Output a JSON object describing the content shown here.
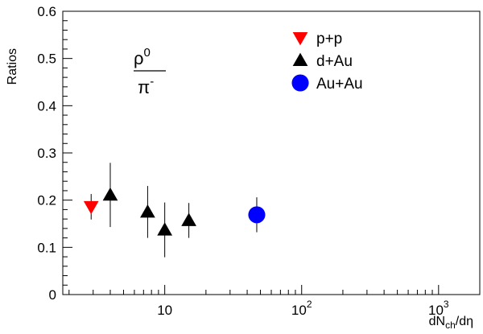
{
  "chart_data": {
    "type": "scatter",
    "title": "",
    "ylabel": "Ratios",
    "xlabel": {
      "base": "dN",
      "sub": "ch",
      "tail": "/dη"
    },
    "xscale": "log",
    "xlim": [
      1.8,
      2000
    ],
    "ylim": [
      0,
      0.6
    ],
    "grid": false,
    "legend_position": "top-right",
    "y_ticks": [
      {
        "value": 0,
        "label": "0"
      },
      {
        "value": 0.1,
        "label": "0.1"
      },
      {
        "value": 0.2,
        "label": "0.2"
      },
      {
        "value": 0.3,
        "label": "0.3"
      },
      {
        "value": 0.4,
        "label": "0.4"
      },
      {
        "value": 0.5,
        "label": "0.5"
      },
      {
        "value": 0.6,
        "label": "0.6"
      }
    ],
    "x_ticks": [
      {
        "value": 10,
        "base": "10",
        "exp": ""
      },
      {
        "value": 100,
        "base": "10",
        "exp": "2"
      },
      {
        "value": 1000,
        "base": "10",
        "exp": "3"
      }
    ],
    "annotation": {
      "numerator": "ρ",
      "numerator_sup": "0",
      "denominator": "π",
      "denominator_sup": "-"
    },
    "series": [
      {
        "name": "p+p",
        "marker": "triangle-down",
        "color": "#ff0000",
        "points": [
          {
            "x": 2.9,
            "y": 0.186,
            "err": 0.027
          }
        ]
      },
      {
        "name": "d+Au",
        "marker": "triangle-up",
        "color": "#000000",
        "points": [
          {
            "x": 4.0,
            "y": 0.211,
            "err": 0.068
          },
          {
            "x": 7.5,
            "y": 0.175,
            "err": 0.055
          },
          {
            "x": 10.0,
            "y": 0.137,
            "err": 0.058
          },
          {
            "x": 15.0,
            "y": 0.157,
            "err": 0.037
          }
        ]
      },
      {
        "name": "Au+Au",
        "marker": "circle",
        "color": "#0000ff",
        "points": [
          {
            "x": 47.0,
            "y": 0.169,
            "err": 0.037
          }
        ]
      }
    ]
  }
}
